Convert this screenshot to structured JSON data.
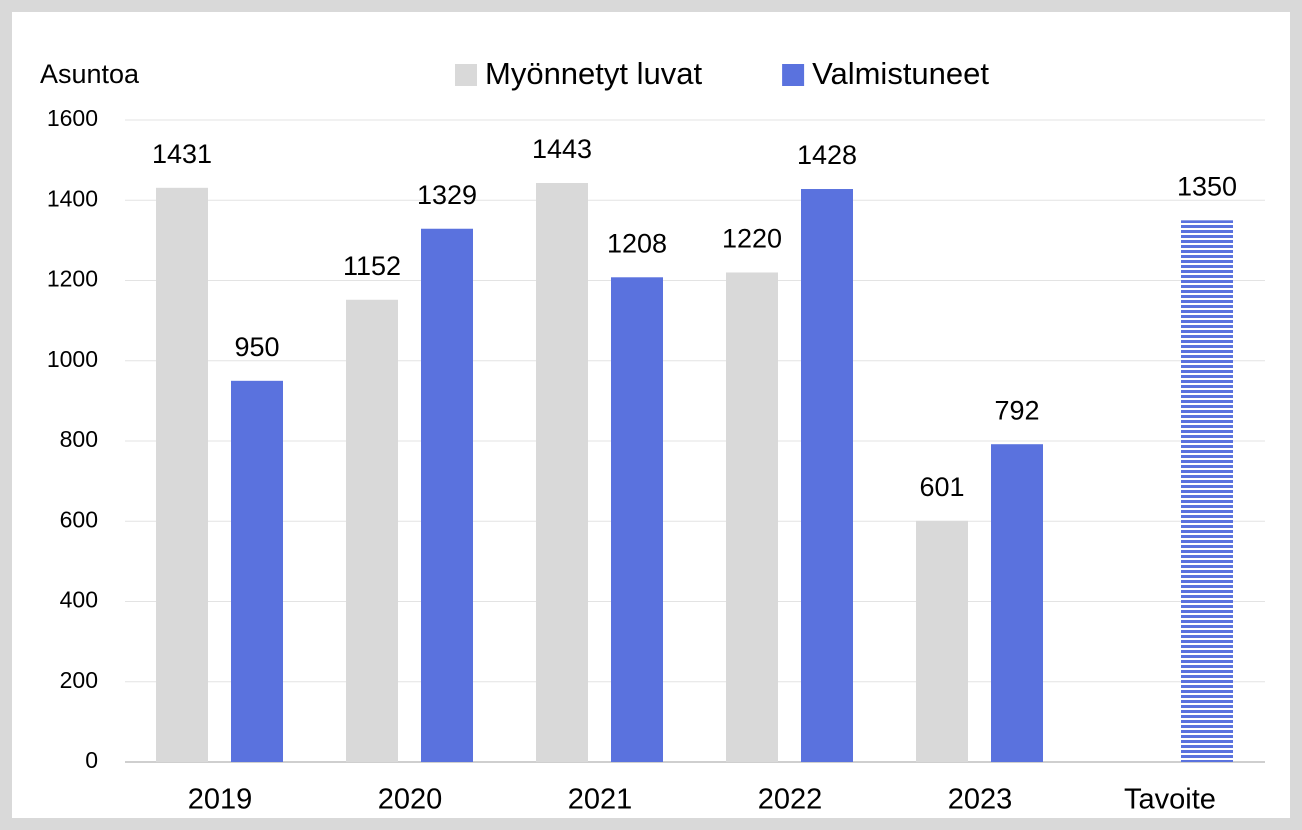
{
  "chart_data": {
    "type": "bar",
    "y_label": "Asuntoa",
    "categories": [
      "2019",
      "2020",
      "2021",
      "2022",
      "2023",
      "Tavoite"
    ],
    "series": [
      {
        "name": "Myönnetyt luvat",
        "color": "#d9d9d9",
        "values": [
          1431,
          1152,
          1443,
          1220,
          601,
          null
        ]
      },
      {
        "name": "Valmistuneet",
        "color": "#5a72de",
        "values": [
          950,
          1329,
          1208,
          1428,
          792,
          null
        ]
      },
      {
        "color": "#5a72de",
        "pattern": "horizontal-stripes",
        "values": [
          null,
          null,
          null,
          null,
          null,
          1350
        ]
      }
    ],
    "ylim": [
      0,
      1600
    ],
    "yticks": [
      0,
      200,
      400,
      600,
      800,
      1000,
      1200,
      1400,
      1600
    ],
    "grid": true
  }
}
